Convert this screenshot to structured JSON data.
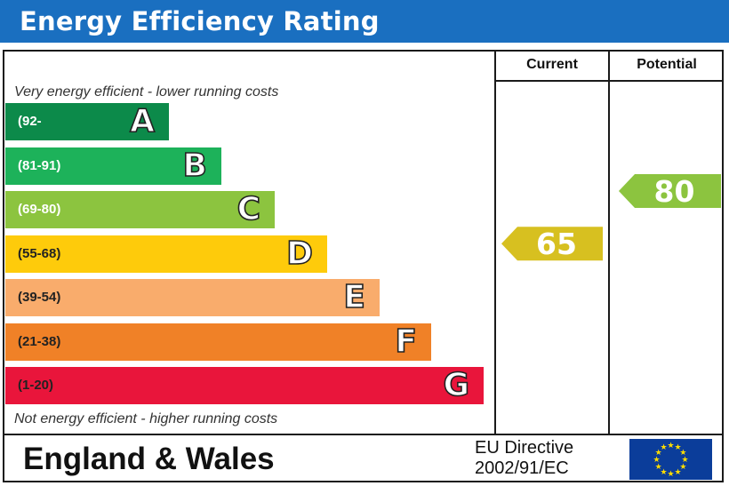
{
  "header": {
    "title": "Energy Efficiency Rating"
  },
  "columns": {
    "current": "Current",
    "potential": "Potential"
  },
  "notes": {
    "top": "Very energy efficient - lower running costs",
    "bottom": "Not energy efficient - higher running costs"
  },
  "chart_data": {
    "type": "bar",
    "bands": [
      {
        "letter": "A",
        "range": "(92-",
        "min": 92,
        "max": 100,
        "color": "#0c8a4a",
        "text_color": "#ffffff"
      },
      {
        "letter": "B",
        "range": "(81-91)",
        "min": 81,
        "max": 91,
        "color": "#1db25a",
        "text_color": "#ffffff"
      },
      {
        "letter": "C",
        "range": "(69-80)",
        "min": 69,
        "max": 80,
        "color": "#8cc43f",
        "text_color": "#ffffff"
      },
      {
        "letter": "D",
        "range": "(55-68)",
        "min": 55,
        "max": 68,
        "color": "#fecb0b",
        "text_color": "#222222"
      },
      {
        "letter": "E",
        "range": "(39-54)",
        "min": 39,
        "max": 54,
        "color": "#f9ac6c",
        "text_color": "#222222"
      },
      {
        "letter": "F",
        "range": "(21-38)",
        "min": 21,
        "max": 38,
        "color": "#f08127",
        "text_color": "#222222"
      },
      {
        "letter": "G",
        "range": "(1-20)",
        "min": 1,
        "max": 20,
        "color": "#e9153b",
        "text_color": "#222222"
      }
    ],
    "current": {
      "value": 65,
      "label": "65",
      "band": "D",
      "color": "#d7c020"
    },
    "potential": {
      "value": 80,
      "label": "80",
      "band": "C",
      "color": "#8cc43f"
    }
  },
  "footer": {
    "region": "England & Wales",
    "directive_line1": "EU Directive",
    "directive_line2": "2002/91/EC",
    "flag_icon": "eu-flag-icon"
  }
}
